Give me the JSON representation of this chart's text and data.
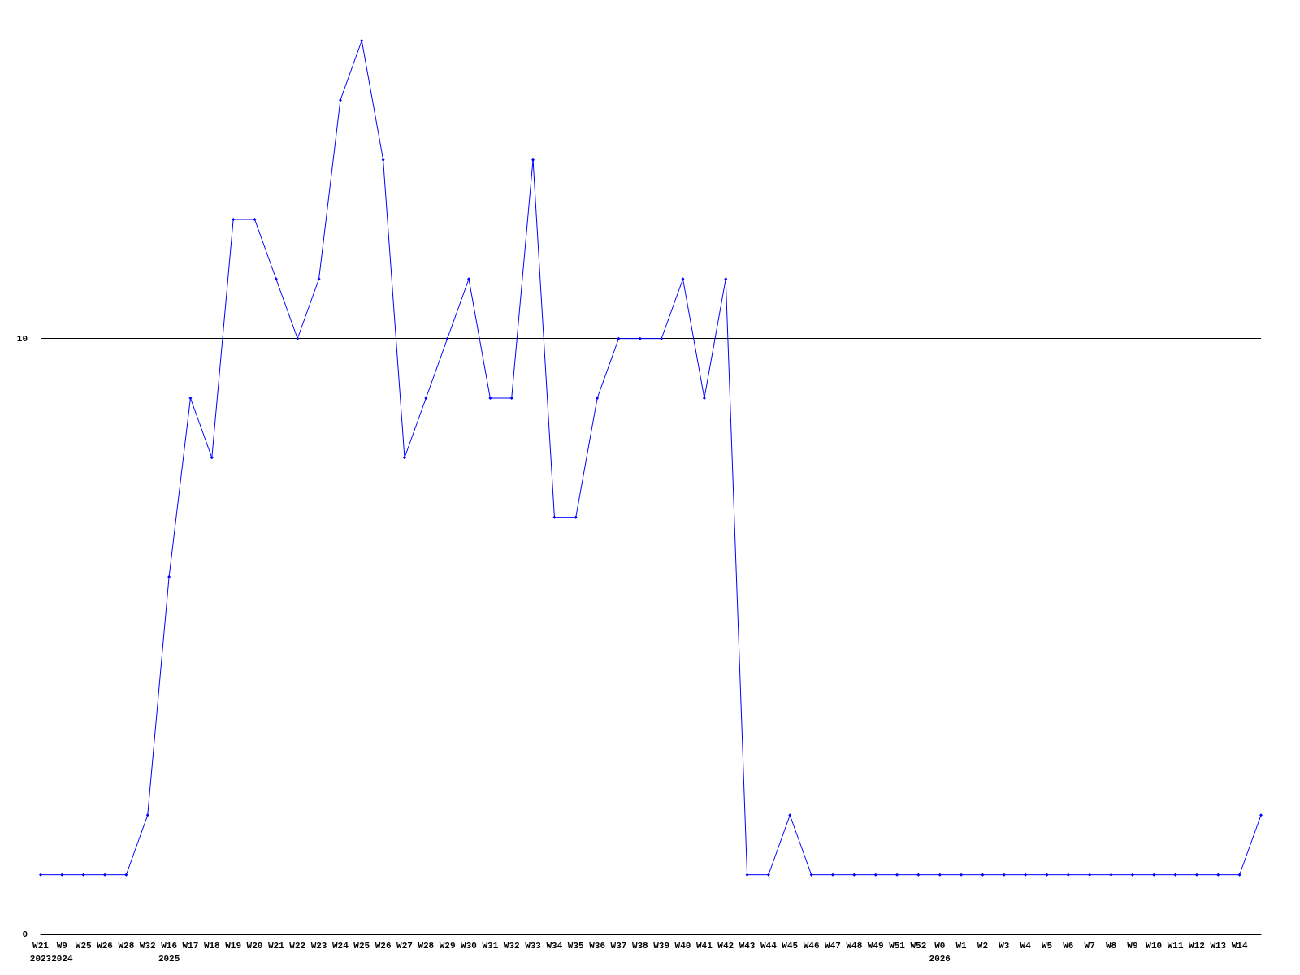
{
  "chart_data": {
    "type": "line",
    "categories": [
      "W21\n2023",
      "W9\n2024",
      "W25",
      "W26",
      "W28",
      "W32",
      "W16\n2025",
      "W17",
      "W18",
      "W19",
      "W20",
      "W21",
      "W22",
      "W23",
      "W24",
      "W25",
      "W26",
      "W27",
      "W28",
      "W29",
      "W30",
      "W31",
      "W32",
      "W33",
      "W34",
      "W35",
      "W36",
      "W37",
      "W38",
      "W39",
      "W40",
      "W41",
      "W42",
      "W43",
      "W44",
      "W45",
      "W46",
      "W47",
      "W48",
      "W49",
      "W51",
      "W52",
      "W0\n2026",
      "W1",
      "W2",
      "W3",
      "W4",
      "W5",
      "W6",
      "W7",
      "W8",
      "W9",
      "W10",
      "W11",
      "W12",
      "W13",
      "W14",
      null
    ],
    "series": [
      {
        "color": "#0000ff",
        "values": [
          1,
          1,
          1,
          1,
          1,
          2,
          6,
          9,
          8,
          12,
          12,
          11,
          10,
          11,
          14,
          15,
          13,
          8,
          9,
          10,
          11,
          9,
          9,
          13,
          7,
          7,
          9,
          10,
          10,
          10,
          11,
          9,
          11,
          1,
          1,
          2,
          1,
          1,
          1,
          1,
          1,
          1,
          1,
          1,
          1,
          1,
          1,
          1,
          1,
          1,
          1,
          1,
          1,
          1,
          1,
          1,
          1,
          2
        ]
      }
    ],
    "ylim": [
      0,
      15
    ],
    "yticks": [
      0,
      10
    ],
    "grid": "y",
    "marker": "diamond",
    "line_style": "solid"
  }
}
